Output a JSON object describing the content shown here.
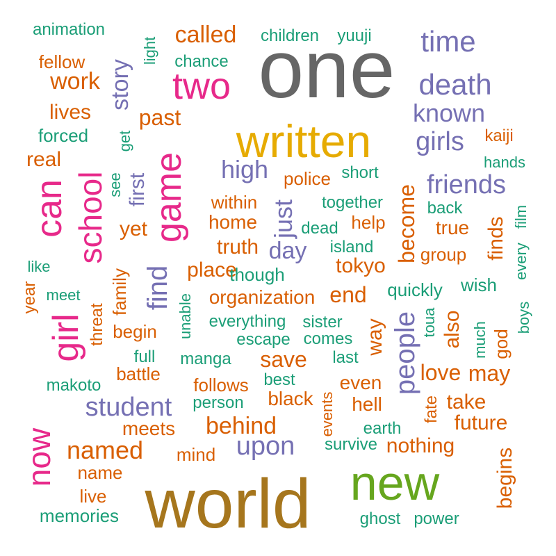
{
  "colors": {
    "green": "#1b9e77",
    "orange": "#d95f02",
    "purple": "#7570b3",
    "pink": "#e7298a",
    "lime": "#66a61e",
    "gold": "#e6ab02",
    "brown": "#a6761d",
    "gray": "#666666"
  },
  "words": [
    {
      "text": "one",
      "color": "gray"
    },
    {
      "text": "world",
      "color": "brown"
    },
    {
      "text": "written",
      "color": "gold"
    },
    {
      "text": "new",
      "color": "lime"
    },
    {
      "text": "two",
      "color": "pink"
    },
    {
      "text": "game",
      "color": "pink"
    },
    {
      "text": "school",
      "color": "pink"
    },
    {
      "text": "girl",
      "color": "pink"
    },
    {
      "text": "can",
      "color": "pink"
    },
    {
      "text": "now",
      "color": "pink"
    },
    {
      "text": "time",
      "color": "purple"
    },
    {
      "text": "death",
      "color": "purple"
    },
    {
      "text": "known",
      "color": "purple"
    },
    {
      "text": "girls",
      "color": "purple"
    },
    {
      "text": "friends",
      "color": "purple"
    },
    {
      "text": "people",
      "color": "purple"
    },
    {
      "text": "student",
      "color": "purple"
    },
    {
      "text": "upon",
      "color": "purple"
    },
    {
      "text": "story",
      "color": "purple"
    },
    {
      "text": "high",
      "color": "purple"
    },
    {
      "text": "just",
      "color": "purple"
    },
    {
      "text": "day",
      "color": "purple"
    },
    {
      "text": "find",
      "color": "purple"
    },
    {
      "text": "first",
      "color": "purple"
    },
    {
      "text": "called",
      "color": "orange"
    },
    {
      "text": "past",
      "color": "orange"
    },
    {
      "text": "work",
      "color": "orange"
    },
    {
      "text": "lives",
      "color": "orange"
    },
    {
      "text": "fellow",
      "color": "orange"
    },
    {
      "text": "real",
      "color": "orange"
    },
    {
      "text": "kaiji",
      "color": "orange"
    },
    {
      "text": "become",
      "color": "orange"
    },
    {
      "text": "finds",
      "color": "orange"
    },
    {
      "text": "true",
      "color": "orange"
    },
    {
      "text": "group",
      "color": "orange"
    },
    {
      "text": "help",
      "color": "orange"
    },
    {
      "text": "police",
      "color": "orange"
    },
    {
      "text": "within",
      "color": "orange"
    },
    {
      "text": "home",
      "color": "orange"
    },
    {
      "text": "truth",
      "color": "orange"
    },
    {
      "text": "yet",
      "color": "orange"
    },
    {
      "text": "tokyo",
      "color": "orange"
    },
    {
      "text": "place",
      "color": "orange"
    },
    {
      "text": "organization",
      "color": "orange"
    },
    {
      "text": "end",
      "color": "orange"
    },
    {
      "text": "love",
      "color": "orange"
    },
    {
      "text": "may",
      "color": "orange"
    },
    {
      "text": "also",
      "color": "orange"
    },
    {
      "text": "god",
      "color": "orange"
    },
    {
      "text": "way",
      "color": "orange"
    },
    {
      "text": "save",
      "color": "orange"
    },
    {
      "text": "begin",
      "color": "orange"
    },
    {
      "text": "family",
      "color": "orange"
    },
    {
      "text": "threat",
      "color": "orange"
    },
    {
      "text": "year",
      "color": "orange"
    },
    {
      "text": "battle",
      "color": "orange"
    },
    {
      "text": "follows",
      "color": "orange"
    },
    {
      "text": "black",
      "color": "orange"
    },
    {
      "text": "even",
      "color": "orange"
    },
    {
      "text": "hell",
      "color": "orange"
    },
    {
      "text": "take",
      "color": "orange"
    },
    {
      "text": "future",
      "color": "orange"
    },
    {
      "text": "fate",
      "color": "orange"
    },
    {
      "text": "behind",
      "color": "orange"
    },
    {
      "text": "meets",
      "color": "orange"
    },
    {
      "text": "named",
      "color": "orange"
    },
    {
      "text": "mind",
      "color": "orange"
    },
    {
      "text": "name",
      "color": "orange"
    },
    {
      "text": "live",
      "color": "orange"
    },
    {
      "text": "events",
      "color": "orange"
    },
    {
      "text": "nothing",
      "color": "orange"
    },
    {
      "text": "begins",
      "color": "orange"
    },
    {
      "text": "animation",
      "color": "green"
    },
    {
      "text": "children",
      "color": "green"
    },
    {
      "text": "yuuji",
      "color": "green"
    },
    {
      "text": "light",
      "color": "green"
    },
    {
      "text": "chance",
      "color": "green"
    },
    {
      "text": "forced",
      "color": "green"
    },
    {
      "text": "get",
      "color": "green"
    },
    {
      "text": "see",
      "color": "green"
    },
    {
      "text": "hands",
      "color": "green"
    },
    {
      "text": "short",
      "color": "green"
    },
    {
      "text": "together",
      "color": "green"
    },
    {
      "text": "back",
      "color": "green"
    },
    {
      "text": "film",
      "color": "green"
    },
    {
      "text": "every",
      "color": "green"
    },
    {
      "text": "dead",
      "color": "green"
    },
    {
      "text": "island",
      "color": "green"
    },
    {
      "text": "like",
      "color": "green"
    },
    {
      "text": "though",
      "color": "green"
    },
    {
      "text": "wish",
      "color": "green"
    },
    {
      "text": "quickly",
      "color": "green"
    },
    {
      "text": "boys",
      "color": "green"
    },
    {
      "text": "meet",
      "color": "green"
    },
    {
      "text": "unable",
      "color": "green"
    },
    {
      "text": "everything",
      "color": "green"
    },
    {
      "text": "sister",
      "color": "green"
    },
    {
      "text": "toua",
      "color": "green"
    },
    {
      "text": "much",
      "color": "green"
    },
    {
      "text": "escape",
      "color": "green"
    },
    {
      "text": "comes",
      "color": "green"
    },
    {
      "text": "full",
      "color": "green"
    },
    {
      "text": "manga",
      "color": "green"
    },
    {
      "text": "last",
      "color": "green"
    },
    {
      "text": "makoto",
      "color": "green"
    },
    {
      "text": "best",
      "color": "green"
    },
    {
      "text": "person",
      "color": "green"
    },
    {
      "text": "earth",
      "color": "green"
    },
    {
      "text": "survive",
      "color": "green"
    },
    {
      "text": "memories",
      "color": "green"
    },
    {
      "text": "ghost",
      "color": "green"
    },
    {
      "text": "power",
      "color": "green"
    }
  ]
}
